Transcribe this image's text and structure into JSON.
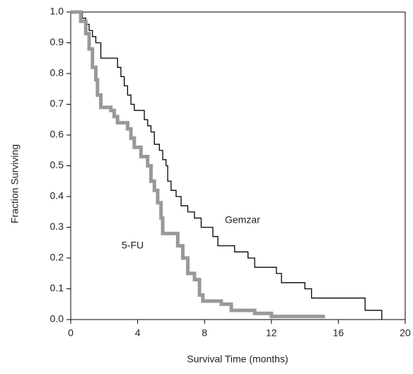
{
  "chart_data": {
    "type": "step",
    "xlabel": "Survival Time (months)",
    "ylabel": "Fraction Surviving",
    "xlim": [
      0,
      20
    ],
    "xticks": [
      0,
      4,
      8,
      12,
      16,
      20
    ],
    "ylim": [
      0,
      1
    ],
    "yticks": [
      {
        "value": 0,
        "label": "0.0"
      },
      0.1,
      0.2,
      0.3,
      0.4,
      0.5,
      0.6,
      0.7,
      0.8,
      0.9,
      {
        "value": 1,
        "label": "1.0"
      }
    ],
    "series": [
      {
        "name": "Gemzar",
        "color": "#000000",
        "x": [
          0,
          0.5,
          0.7,
          0.9,
          1.1,
          1.3,
          1.5,
          1.8,
          2.6,
          2.8,
          3.0,
          3.2,
          3.4,
          3.6,
          3.8,
          4.4,
          4.6,
          4.8,
          5.0,
          5.3,
          5.5,
          5.7,
          5.8,
          6.0,
          6.3,
          6.6,
          7.0,
          7.4,
          7.8,
          8.5,
          8.8,
          9.8,
          10.6,
          11.0,
          12.3,
          12.6,
          14.0,
          14.4,
          17.6,
          18.6
        ],
        "values": [
          1.0,
          1.0,
          0.98,
          0.96,
          0.94,
          0.92,
          0.9,
          0.85,
          0.85,
          0.82,
          0.79,
          0.76,
          0.73,
          0.7,
          0.68,
          0.65,
          0.63,
          0.61,
          0.57,
          0.55,
          0.52,
          0.5,
          0.45,
          0.42,
          0.4,
          0.37,
          0.35,
          0.33,
          0.3,
          0.27,
          0.24,
          0.22,
          0.2,
          0.17,
          0.15,
          0.12,
          0.1,
          0.07,
          0.03,
          0.0
        ]
      },
      {
        "name": "5-FU",
        "color": "#999999",
        "x": [
          0,
          0.6,
          0.9,
          1.1,
          1.3,
          1.5,
          1.6,
          1.8,
          2.4,
          2.6,
          2.8,
          3.4,
          3.6,
          3.8,
          4.2,
          4.6,
          4.8,
          5.0,
          5.2,
          5.4,
          5.5,
          6.4,
          6.7,
          7.0,
          7.4,
          7.7,
          7.9,
          9.0,
          9.6,
          11.0,
          12.0,
          15.2
        ],
        "values": [
          1.0,
          0.97,
          0.93,
          0.88,
          0.82,
          0.78,
          0.73,
          0.69,
          0.68,
          0.66,
          0.64,
          0.62,
          0.59,
          0.56,
          0.53,
          0.5,
          0.45,
          0.42,
          0.38,
          0.33,
          0.28,
          0.24,
          0.2,
          0.15,
          0.13,
          0.08,
          0.06,
          0.05,
          0.03,
          0.02,
          0.01,
          0.01
        ]
      }
    ]
  }
}
